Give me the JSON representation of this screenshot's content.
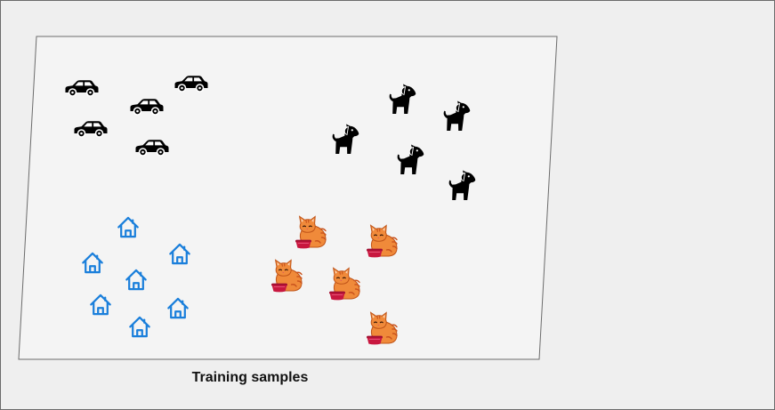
{
  "caption": "Training samples",
  "colors": {
    "canvas_background": "#efefef",
    "panel_fill": "#f4f4f4",
    "panel_stroke": "#6b6b6b",
    "car": "#000000",
    "dog": "#000000",
    "house": "#1a7fdb",
    "cat_body": "#f08a3a",
    "cat_stripe": "#c9531d",
    "bowl": "#c8173f"
  },
  "icons": {
    "car": "car-icon",
    "dog": "dog-icon",
    "house": "house-icon",
    "cat": "cat-with-bowl-icon"
  },
  "groups": [
    {
      "category": "car",
      "count": 5
    },
    {
      "category": "dog",
      "count": 5
    },
    {
      "category": "house",
      "count": 7
    },
    {
      "category": "cat",
      "count": 5
    }
  ]
}
